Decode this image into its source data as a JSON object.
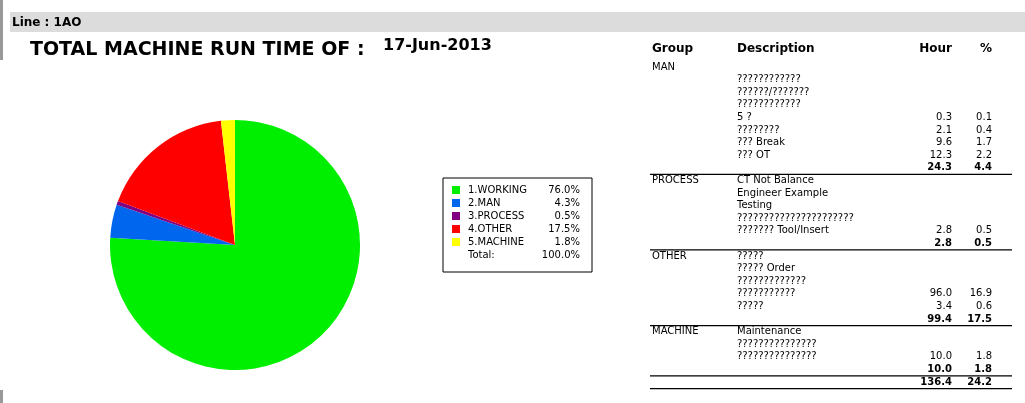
{
  "chart_data": [
    {
      "type": "pie",
      "title": "TOTAL MACHINE RUN TIME OF :",
      "subtitle": "17-Jun-2013",
      "categories": [
        "1.WORKING",
        "2.MAN",
        "3.PROCESS",
        "4.OTHER",
        "5.MACHINE"
      ],
      "values": [
        76.0,
        4.3,
        0.5,
        17.5,
        1.8
      ],
      "value_labels": [
        "76.0%",
        "4.3%",
        "0.5%",
        "17.5%",
        "1.8%"
      ],
      "colors": [
        "#00ee00",
        "#0066ee",
        "#800080",
        "#ff0000",
        "#ffff00"
      ],
      "legend": "right",
      "annotations": [
        "Line : 1AO",
        "Total:",
        "100.0%"
      ]
    },
    {
      "type": "other",
      "categories": [
        "Group",
        "Description",
        "Hour",
        "%"
      ],
      "cell_labels": [
        [
          "MAN",
          null,
          null,
          null
        ],
        [
          null,
          "????????????",
          null,
          null
        ],
        [
          null,
          "??????/???????",
          null,
          null
        ],
        [
          null,
          "????????????",
          null,
          null
        ],
        [
          null,
          "5 ?",
          "0.3",
          "0.1"
        ],
        [
          null,
          "????????",
          "2.1",
          "0.4"
        ],
        [
          null,
          "??? Break",
          "9.6",
          "1.7"
        ],
        [
          null,
          "??? OT",
          "12.3",
          "2.2"
        ],
        [
          null,
          null,
          "24.3",
          "4.4"
        ],
        [
          "PROCESS",
          "CT Not Balance",
          null,
          null
        ],
        [
          null,
          "Engineer Example",
          null,
          null
        ],
        [
          null,
          "Testing",
          null,
          null
        ],
        [
          null,
          "??????????????????????",
          null,
          null
        ],
        [
          null,
          "??????? Tool/Insert",
          "2.8",
          "0.5"
        ],
        [
          null,
          null,
          "2.8",
          "0.5"
        ],
        [
          "OTHER",
          "?????",
          null,
          null
        ],
        [
          null,
          "????? Order",
          null,
          null
        ],
        [
          null,
          "?????????????",
          null,
          null
        ],
        [
          null,
          "???????????",
          "96.0",
          "16.9"
        ],
        [
          null,
          "?????",
          "3.4",
          "0.6"
        ],
        [
          null,
          null,
          "99.4",
          "17.5"
        ],
        [
          "MACHINE",
          "Maintenance",
          null,
          null
        ],
        [
          null,
          "???????????????",
          null,
          null
        ],
        [
          null,
          "???????????????",
          "10.0",
          "1.8"
        ],
        [
          null,
          null,
          "10.0",
          "1.8"
        ],
        [
          null,
          null,
          "136.4",
          "24.2"
        ]
      ]
    }
  ]
}
